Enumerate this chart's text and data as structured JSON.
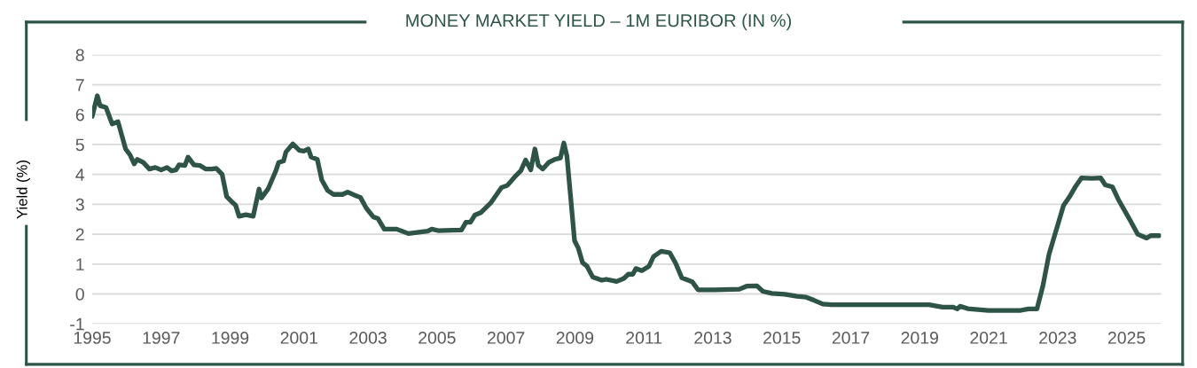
{
  "chart_data": {
    "type": "line",
    "title": "MONEY MARKET YIELD – 1M EURIBOR (IN %)",
    "ylabel": "Yield (%)",
    "xlim": [
      1995,
      2026
    ],
    "xticks": [
      1995,
      1997,
      1999,
      2001,
      2003,
      2005,
      2007,
      2009,
      2011,
      2013,
      2015,
      2017,
      2019,
      2021,
      2023,
      2025
    ],
    "ylim": [
      -1,
      8
    ],
    "yticks": [
      -1,
      0,
      1,
      2,
      3,
      4,
      5,
      6,
      7,
      8
    ],
    "grid": "y",
    "marker": "none",
    "line_style": "solid",
    "series": [
      {
        "color": "#2d5446",
        "x": [
          1995.0,
          1995.15,
          1995.23,
          1995.4,
          1995.58,
          1995.75,
          1995.97,
          1996.1,
          1996.22,
          1996.31,
          1996.48,
          1996.66,
          1996.83,
          1997.0,
          1997.17,
          1997.3,
          1997.43,
          1997.52,
          1997.69,
          1997.78,
          1997.95,
          1998.12,
          1998.29,
          1998.47,
          1998.6,
          1998.77,
          1998.9,
          1999.07,
          1999.16,
          1999.26,
          1999.46,
          1999.67,
          1999.84,
          1999.91,
          2000.1,
          2000.32,
          2000.41,
          2000.55,
          2000.62,
          2000.82,
          2001.01,
          2001.14,
          2001.27,
          2001.35,
          2001.53,
          2001.66,
          2001.83,
          2002.0,
          2002.26,
          2002.41,
          2002.6,
          2002.78,
          2002.95,
          2003.16,
          2003.29,
          2003.47,
          2003.83,
          2004.17,
          2004.73,
          2004.85,
          2005.03,
          2005.71,
          2005.84,
          2005.97,
          2006.1,
          2006.27,
          2006.57,
          2006.87,
          2007.04,
          2007.25,
          2007.43,
          2007.57,
          2007.72,
          2007.84,
          2007.94,
          2008.07,
          2008.24,
          2008.41,
          2008.58,
          2008.68,
          2008.77,
          2008.99,
          2009.1,
          2009.22,
          2009.35,
          2009.52,
          2009.78,
          2009.91,
          2010.21,
          2010.42,
          2010.55,
          2010.68,
          2010.77,
          2010.94,
          2011.15,
          2011.28,
          2011.5,
          2011.75,
          2011.92,
          2012.1,
          2012.4,
          2012.57,
          2013.04,
          2013.77,
          2013.98,
          2014.28,
          2014.45,
          2014.71,
          2015.09,
          2015.44,
          2015.71,
          2015.93,
          2016.19,
          2016.44,
          2017.56,
          2019.27,
          2019.66,
          2019.96,
          2020.09,
          2020.17,
          2020.39,
          2020.99,
          2021.93,
          2022.15,
          2022.4,
          2022.57,
          2022.75,
          2022.96,
          2023.17,
          2023.35,
          2023.52,
          2023.69,
          2023.99,
          2024.25,
          2024.38,
          2024.59,
          2024.76,
          2025.1,
          2025.32,
          2025.58,
          2025.7,
          2025.94
        ],
        "values": [
          5.94,
          6.63,
          6.3,
          6.24,
          5.69,
          5.76,
          4.85,
          4.65,
          4.35,
          4.5,
          4.4,
          4.18,
          4.23,
          4.15,
          4.23,
          4.12,
          4.15,
          4.32,
          4.3,
          4.58,
          4.32,
          4.3,
          4.18,
          4.18,
          4.2,
          4.0,
          3.26,
          3.06,
          2.97,
          2.6,
          2.65,
          2.6,
          3.51,
          3.21,
          3.51,
          4.1,
          4.4,
          4.45,
          4.75,
          5.02,
          4.8,
          4.78,
          4.85,
          4.58,
          4.5,
          3.81,
          3.46,
          3.33,
          3.33,
          3.41,
          3.31,
          3.23,
          2.87,
          2.57,
          2.52,
          2.17,
          2.17,
          2.02,
          2.1,
          2.17,
          2.12,
          2.14,
          2.4,
          2.4,
          2.64,
          2.72,
          3.06,
          3.56,
          3.63,
          3.91,
          4.12,
          4.48,
          4.15,
          4.85,
          4.3,
          4.18,
          4.4,
          4.5,
          4.55,
          5.05,
          4.6,
          1.78,
          1.53,
          1.05,
          0.93,
          0.56,
          0.46,
          0.49,
          0.42,
          0.52,
          0.66,
          0.66,
          0.85,
          0.78,
          0.93,
          1.25,
          1.43,
          1.38,
          1.03,
          0.54,
          0.41,
          0.14,
          0.14,
          0.16,
          0.26,
          0.27,
          0.09,
          0.02,
          -0.01,
          -0.08,
          -0.11,
          -0.21,
          -0.34,
          -0.36,
          -0.36,
          -0.36,
          -0.44,
          -0.44,
          -0.5,
          -0.41,
          -0.49,
          -0.55,
          -0.55,
          -0.5,
          -0.5,
          0.26,
          1.33,
          2.14,
          2.96,
          3.26,
          3.6,
          3.88,
          3.87,
          3.88,
          3.65,
          3.58,
          3.16,
          2.47,
          2.0,
          1.87,
          1.95,
          1.95
        ]
      }
    ]
  }
}
